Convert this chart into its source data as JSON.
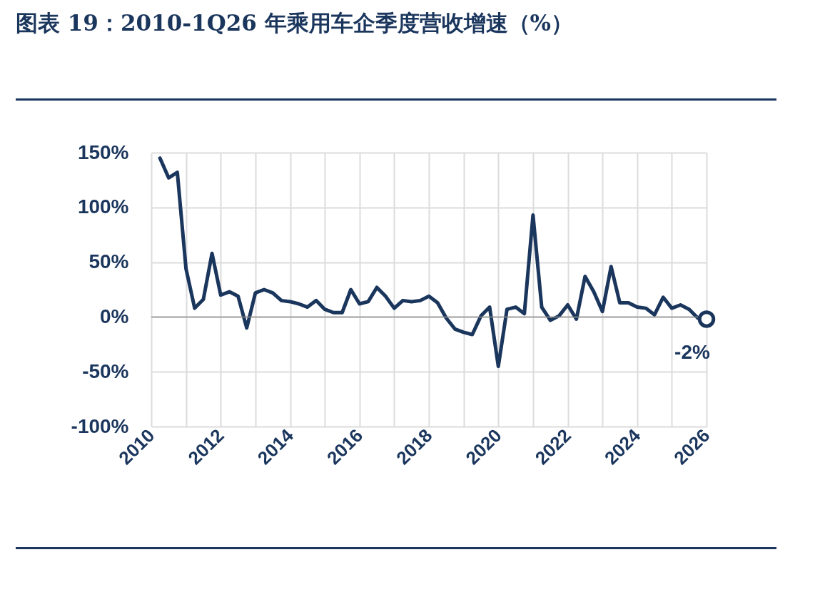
{
  "chart_data": {
    "type": "line",
    "title": "图表 19：2010-1Q26 年乘用车企季度营收增速（%）",
    "x": [
      2010.25,
      2010.5,
      2010.75,
      2011,
      2011.25,
      2011.5,
      2011.75,
      2012,
      2012.25,
      2012.5,
      2012.75,
      2013,
      2013.25,
      2013.5,
      2013.75,
      2014,
      2014.25,
      2014.5,
      2014.75,
      2015,
      2015.25,
      2015.5,
      2015.75,
      2016,
      2016.25,
      2016.5,
      2016.75,
      2017,
      2017.25,
      2017.5,
      2017.75,
      2018,
      2018.25,
      2018.5,
      2018.75,
      2019,
      2019.25,
      2019.5,
      2019.75,
      2020,
      2020.25,
      2020.5,
      2020.75,
      2021,
      2021.25,
      2021.5,
      2021.75,
      2022,
      2022.25,
      2022.5,
      2022.75,
      2023,
      2023.25,
      2023.5,
      2023.75,
      2024,
      2024.25,
      2024.5,
      2024.75,
      2025,
      2025.25,
      2025.5,
      2025.75,
      2026
    ],
    "series": [
      {
        "color": "#1b365d",
        "values": [
          145,
          127,
          132,
          44,
          8,
          16,
          58,
          20,
          23,
          19,
          -10,
          22,
          25,
          22,
          15,
          14,
          12,
          9,
          15,
          7,
          4,
          4,
          25,
          12,
          14,
          27,
          19,
          8,
          15,
          14,
          15,
          19,
          13,
          -1,
          -11,
          -14,
          -16,
          1,
          9,
          -45,
          7,
          9,
          3,
          93,
          9,
          -3,
          1,
          11,
          -2,
          37,
          23,
          5,
          46,
          13,
          13,
          9,
          8,
          2,
          18,
          8,
          11,
          7,
          -1,
          -2
        ]
      }
    ],
    "xlim": [
      2010,
      2026
    ],
    "xticks": [
      2010,
      {
        "value": 2011,
        "label": null
      },
      2012,
      {
        "value": 2013,
        "label": null
      },
      2014,
      {
        "value": 2015,
        "label": null
      },
      2016,
      {
        "value": 2017,
        "label": null
      },
      2018,
      {
        "value": 2019,
        "label": null
      },
      2020,
      {
        "value": 2021,
        "label": null
      },
      2022,
      {
        "value": 2023,
        "label": null
      },
      2024,
      {
        "value": 2025,
        "label": null
      },
      2026
    ],
    "ylim": [
      -100,
      150
    ],
    "yticks": [
      {
        "value": -100,
        "label": "-100%"
      },
      {
        "value": -50,
        "label": "-50%"
      },
      {
        "value": 0,
        "label": "0%"
      },
      {
        "value": 50,
        "label": "50%"
      },
      {
        "value": 100,
        "label": "100%"
      },
      {
        "value": 150,
        "label": "150%"
      }
    ],
    "grid": true,
    "ref_lines": [
      {
        "axis": "y",
        "value": 0,
        "color": "#8c8c8c"
      }
    ],
    "annotations": [
      {
        "text": "-2%",
        "x": 2026,
        "y": -2
      }
    ]
  }
}
